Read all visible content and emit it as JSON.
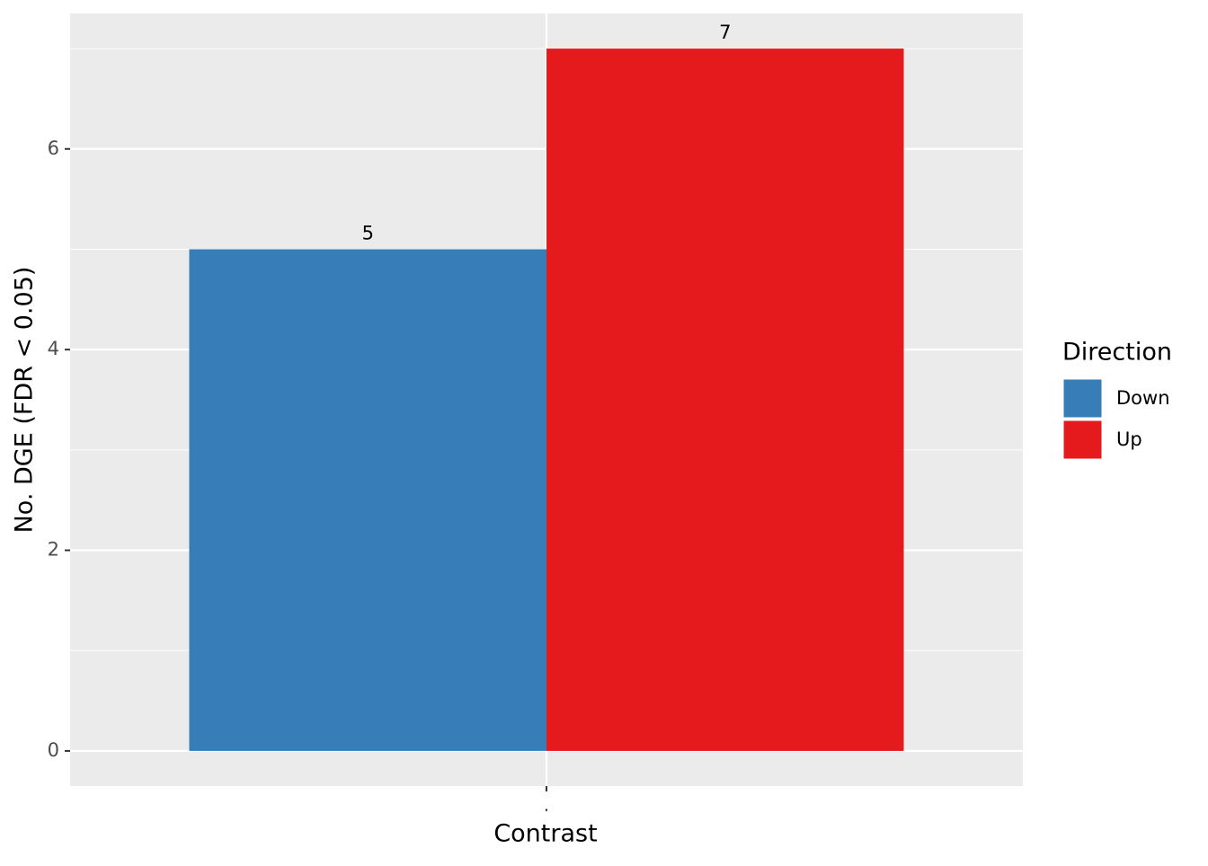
{
  "chart_data": {
    "type": "bar",
    "x_label": "Contrast",
    "y_label": "No. DGE (FDR < 0.05)",
    "categories": [
      "."
    ],
    "series": [
      {
        "name": "Down",
        "color": "#377EB8",
        "values": [
          5
        ]
      },
      {
        "name": "Up",
        "color": "#E41A1C",
        "values": [
          7
        ]
      }
    ],
    "legend_title": "Direction",
    "legend": "right",
    "ylim": [
      -0.35,
      7.35
    ],
    "yticks": [
      0,
      2,
      4,
      6
    ],
    "grid": true
  }
}
